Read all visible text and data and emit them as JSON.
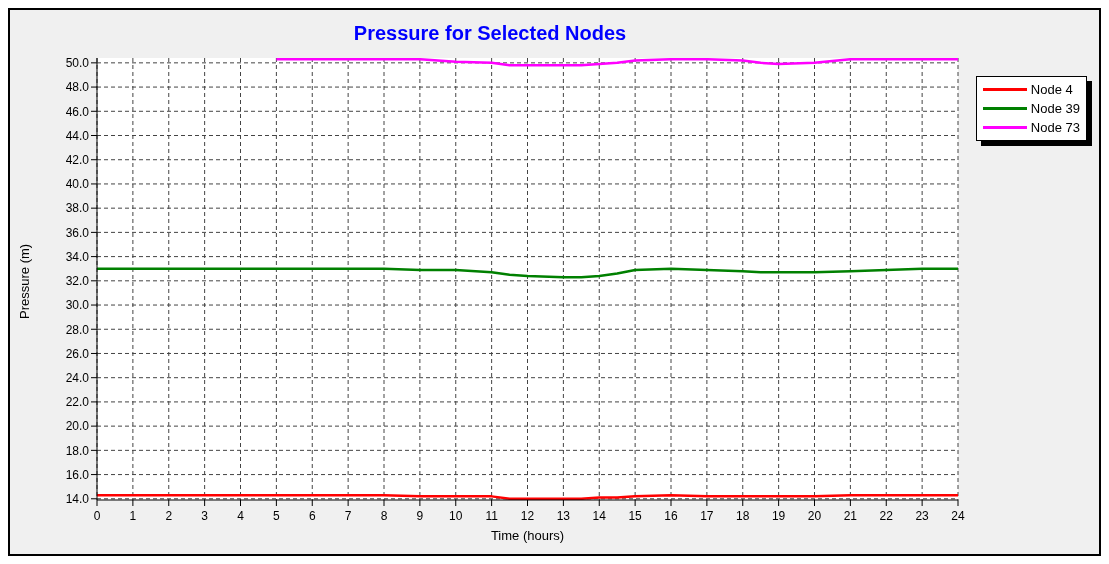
{
  "chart_data": {
    "type": "line",
    "title": "Pressure for Selected Nodes",
    "xlabel": "Time (hours)",
    "ylabel": "Pressure (m)",
    "x": [
      0,
      1,
      2,
      3,
      4,
      5,
      6,
      7,
      8,
      9,
      10,
      11,
      11.5,
      12,
      13,
      13.5,
      14,
      14.5,
      15,
      16,
      17,
      18,
      18.5,
      19,
      20,
      21,
      22,
      23,
      24
    ],
    "series": [
      {
        "name": "Node 4",
        "color": "#ff0000",
        "values": [
          14.3,
          14.3,
          14.3,
          14.3,
          14.3,
          14.3,
          14.3,
          14.3,
          14.3,
          14.2,
          14.2,
          14.2,
          14.0,
          14.0,
          14.0,
          14.0,
          14.1,
          14.1,
          14.2,
          14.3,
          14.2,
          14.2,
          14.2,
          14.2,
          14.2,
          14.3,
          14.3,
          14.3,
          14.3
        ]
      },
      {
        "name": "Node 39",
        "color": "#008000",
        "values": [
          33.0,
          33.0,
          33.0,
          33.0,
          33.0,
          33.0,
          33.0,
          33.0,
          33.0,
          32.9,
          32.9,
          32.7,
          32.5,
          32.4,
          32.3,
          32.3,
          32.4,
          32.6,
          32.9,
          33.0,
          32.9,
          32.8,
          32.7,
          32.7,
          32.7,
          32.8,
          32.9,
          33.0,
          33.0
        ]
      },
      {
        "name": "Node 73",
        "color": "#ff00ff",
        "values": [
          null,
          null,
          null,
          null,
          null,
          50.3,
          50.3,
          50.3,
          50.3,
          50.3,
          50.1,
          50.0,
          49.8,
          49.8,
          49.8,
          49.8,
          49.9,
          50.0,
          50.2,
          50.3,
          50.3,
          50.2,
          50.0,
          49.9,
          50.0,
          50.3,
          50.3,
          50.3,
          50.3
        ]
      }
    ],
    "xlim": [
      0,
      24
    ],
    "xticks": [
      0,
      1,
      2,
      3,
      4,
      5,
      6,
      7,
      8,
      9,
      10,
      11,
      12,
      13,
      14,
      15,
      16,
      17,
      18,
      19,
      20,
      21,
      22,
      23,
      24
    ],
    "ylim": [
      13.9,
      50.4
    ],
    "yticks": [
      {
        "value": 14,
        "label": "14.0"
      },
      {
        "value": 16,
        "label": "16.0"
      },
      {
        "value": 18,
        "label": "18.0"
      },
      {
        "value": 20,
        "label": "20.0"
      },
      {
        "value": 22,
        "label": "22.0"
      },
      {
        "value": 24,
        "label": "24.0"
      },
      {
        "value": 26,
        "label": "26.0"
      },
      {
        "value": 28,
        "label": "28.0"
      },
      {
        "value": 30,
        "label": "30.0"
      },
      {
        "value": 32,
        "label": "32.0"
      },
      {
        "value": 34,
        "label": "34.0"
      },
      {
        "value": 36,
        "label": "36.0"
      },
      {
        "value": 38,
        "label": "38.0"
      },
      {
        "value": 40,
        "label": "40.0"
      },
      {
        "value": 42,
        "label": "42.0"
      },
      {
        "value": 44,
        "label": "44.0"
      },
      {
        "value": 46,
        "label": "46.0"
      },
      {
        "value": 48,
        "label": "48.0"
      },
      {
        "value": 50,
        "label": "50.0"
      }
    ],
    "grid": true,
    "legend": "top right",
    "marker": "none",
    "line_style": "solid"
  }
}
